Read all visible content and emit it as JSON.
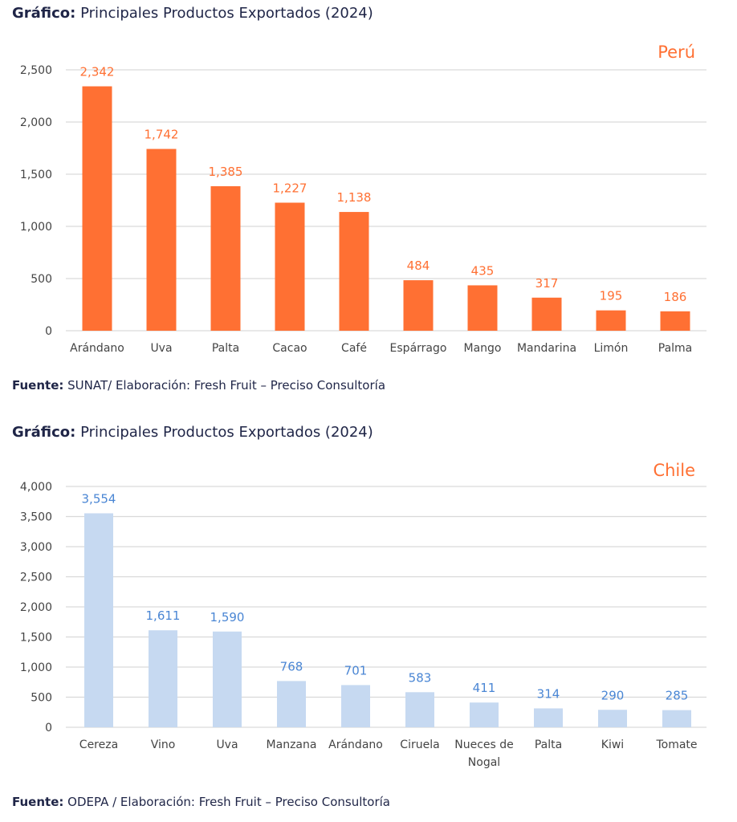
{
  "charts_header": [
    {
      "prefix": "Gráfico:",
      "title": "Principales Productos Exportados (2024)"
    },
    {
      "prefix": "Gráfico:",
      "title": "Principales Productos Exportados (2024)"
    }
  ],
  "sources": [
    {
      "prefix": "Fuente:",
      "text": "SUNAT/ Elaboración: Fresh Fruit – Preciso Consultoría"
    },
    {
      "prefix": "Fuente:",
      "text": " ODEPA / Elaboración: Fresh Fruit – Preciso Consultoría"
    }
  ],
  "chart_data": [
    {
      "type": "bar",
      "title": "Principales Productos Exportados (2024)",
      "country_label": "Perú",
      "color": "#ff7033",
      "label_color": "#ff7033",
      "xlabel": "",
      "ylabel": "",
      "ylim": [
        0,
        2500
      ],
      "yticks": [
        0,
        500,
        1000,
        1500,
        2000,
        2500
      ],
      "ytick_labels": [
        "0",
        "500",
        "1,000",
        "1,500",
        "2,000",
        "2,500"
      ],
      "grid": true,
      "categories": [
        "Arándano",
        "Uva",
        "Palta",
        "Cacao",
        "Café",
        "Espárrago",
        "Mango",
        "Mandarina",
        "Limón",
        "Palma"
      ],
      "values": [
        2342,
        1742,
        1385,
        1227,
        1138,
        484,
        435,
        317,
        195,
        186
      ],
      "data_labels": [
        "2,342",
        "1,742",
        "1,385",
        "1,227",
        "1,138",
        "484",
        "435",
        "317",
        "195",
        "186"
      ]
    },
    {
      "type": "bar",
      "title": "Principales Productos Exportados (2024)",
      "country_label": "Chile",
      "color": "#c6d9f1",
      "label_color": "#4a86d4",
      "xlabel": "",
      "ylabel": "",
      "ylim": [
        0,
        4000
      ],
      "yticks": [
        0,
        500,
        1000,
        1500,
        2000,
        2500,
        3000,
        3500,
        4000
      ],
      "ytick_labels": [
        "0",
        "500",
        "1,000",
        "1,500",
        "2,000",
        "2,500",
        "3,000",
        "3,500",
        "4,000"
      ],
      "grid": true,
      "categories": [
        "Cereza",
        "Vino",
        "Uva",
        "Manzana",
        "Arándano",
        "Ciruela",
        "Nueces de Nogal",
        "Palta",
        "Kiwi",
        "Tomate"
      ],
      "category_lines": [
        [
          "Cereza"
        ],
        [
          "Vino"
        ],
        [
          "Uva"
        ],
        [
          "Manzana"
        ],
        [
          "Arándano"
        ],
        [
          "Ciruela"
        ],
        [
          "Nueces de",
          "Nogal"
        ],
        [
          "Palta"
        ],
        [
          "Kiwi"
        ],
        [
          "Tomate"
        ]
      ],
      "values": [
        3554,
        1611,
        1590,
        768,
        701,
        583,
        411,
        314,
        290,
        285
      ],
      "data_labels": [
        "3,554",
        "1,611",
        "1,590",
        "768",
        "701",
        "583",
        "411",
        "314",
        "290",
        "285"
      ]
    }
  ]
}
